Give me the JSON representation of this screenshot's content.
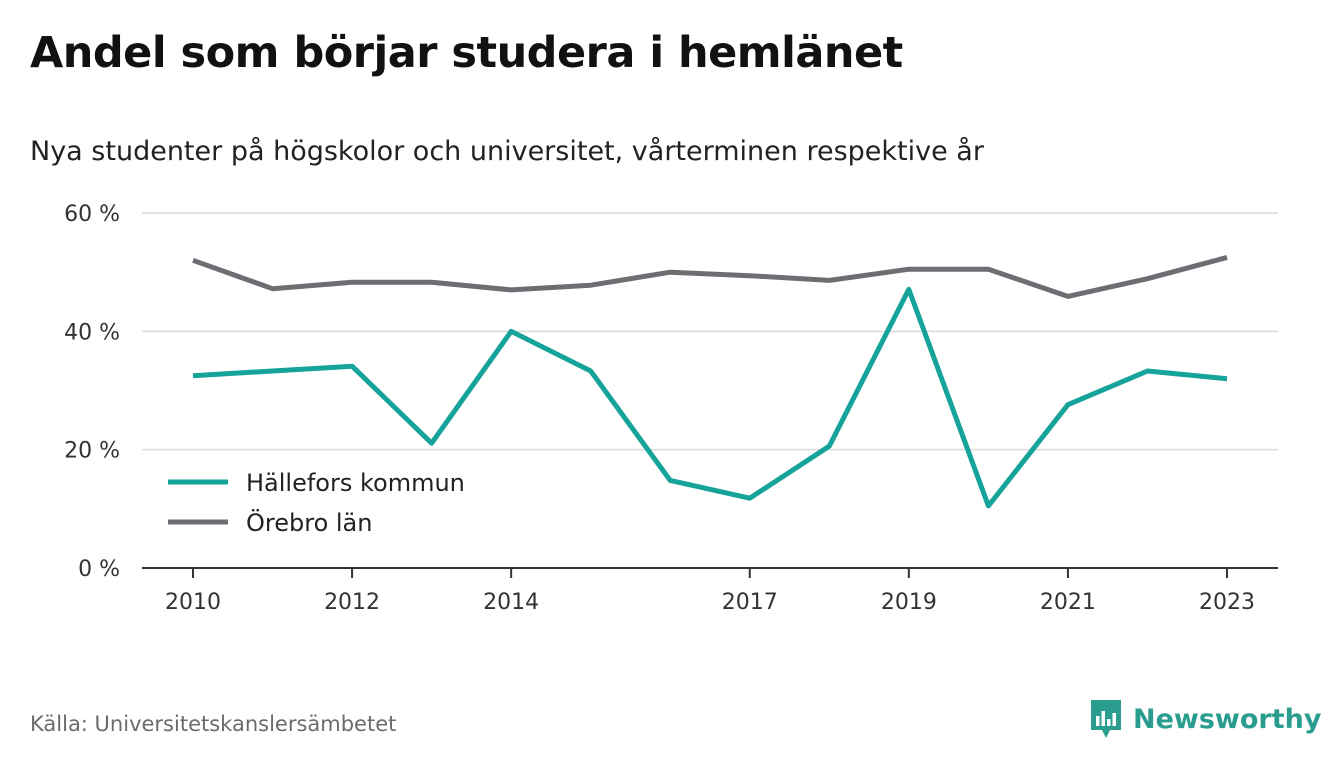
{
  "title": "Andel som börjar studera i hemlänet",
  "subtitle": "Nya studenter på högskolor och universitet, vårterminen respektive år",
  "source": "Källa: Universitetskanslersämbetet",
  "brand": {
    "name": "Newsworthy",
    "icon": "newsworthy-logo-icon",
    "color": "#2a9d8f"
  },
  "chart_data": {
    "type": "line",
    "x": [
      2010,
      2011,
      2012,
      2013,
      2014,
      2015,
      2016,
      2017,
      2018,
      2019,
      2020,
      2021,
      2022,
      2023
    ],
    "x_tick_labels": [
      "2010",
      "2012",
      "2014",
      "2017",
      "2019",
      "2021",
      "2023"
    ],
    "y_tick_labels": [
      "0 %",
      "20 %",
      "40 %",
      "60 %"
    ],
    "ylim": [
      0,
      60
    ],
    "grid": true,
    "legend_position": "left",
    "series": [
      {
        "name": "Hällefors kommun",
        "color": "#16a399",
        "values": [
          32.5,
          33.3,
          34.1,
          21.1,
          40.0,
          33.3,
          14.8,
          11.8,
          20.6,
          47.1,
          10.5,
          27.6,
          33.3,
          32.0
        ]
      },
      {
        "name": "Örebro län",
        "color": "#6e6d73",
        "values": [
          52.0,
          47.2,
          48.3,
          48.3,
          47.0,
          47.8,
          50.0,
          49.4,
          48.6,
          50.5,
          50.5,
          45.9,
          48.9,
          52.5
        ]
      }
    ]
  }
}
